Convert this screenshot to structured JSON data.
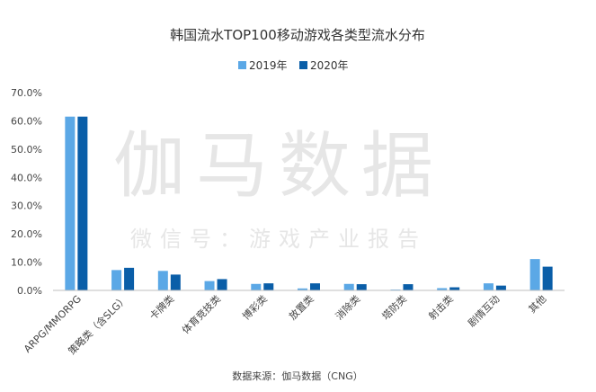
{
  "chart_data": {
    "type": "bar",
    "title": "韩国流水TOP100移动游戏各类型流水分布",
    "categories": [
      "ARPG/MMORPG",
      "策略类（含SLG）",
      "卡牌类",
      "体育竞技类",
      "博彩类",
      "放置类",
      "消除类",
      "塔防类",
      "射击类",
      "剧情互动",
      "其他"
    ],
    "series": [
      {
        "name": "2019年",
        "color": "#5ba8e6",
        "values": [
          61.5,
          7.2,
          6.9,
          3.3,
          2.3,
          0.7,
          2.3,
          0.3,
          0.8,
          2.5,
          11.1
        ]
      },
      {
        "name": "2020年",
        "color": "#0a5ea8",
        "values": [
          61.5,
          8.0,
          5.6,
          4.0,
          2.5,
          2.5,
          2.2,
          2.2,
          1.1,
          1.7,
          8.4
        ]
      }
    ],
    "yticks": [
      "0.0%",
      "10.0%",
      "20.0%",
      "30.0%",
      "40.0%",
      "50.0%",
      "60.0%",
      "70.0%"
    ],
    "ylim": [
      0,
      70
    ],
    "grid": false,
    "legend_position": "top-center"
  },
  "watermark": {
    "main": "伽马数据",
    "sub": "微信号：游戏产业报告"
  },
  "source_note": "数据来源：伽马数据（CNG）"
}
